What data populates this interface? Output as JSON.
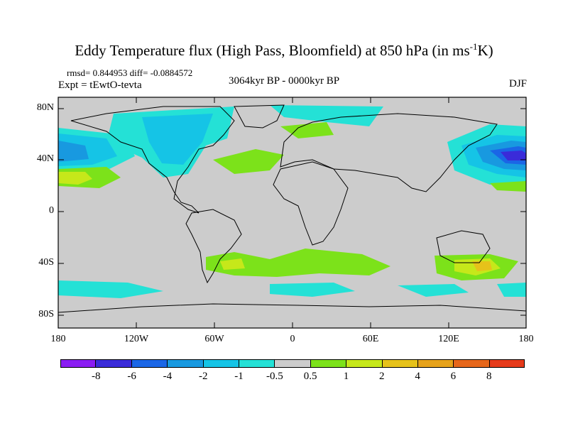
{
  "header": {
    "title_main": "Eddy Temperature flux (High Pass, Bloomfield) at 850 hPa (in ms",
    "title_sup": "-1",
    "title_end": "K)",
    "rmsd_line": "rmsd= 0.844953 diff= -0.0884572",
    "expt_line": "Expt = tEwtO-tevta",
    "period": "3064kyr BP - 0000kyr BP",
    "season": "DJF"
  },
  "axes": {
    "lat_labels": [
      "80N",
      "40N",
      "0",
      "40S",
      "80S"
    ],
    "lon_labels": [
      "180",
      "120W",
      "60W",
      "0",
      "60E",
      "120E",
      "180"
    ]
  },
  "colorbar": {
    "colors": [
      "#8a1cf2",
      "#3a2bd9",
      "#1a66e6",
      "#1899e0",
      "#15c4e6",
      "#24e1d6",
      "#cccccc",
      "#7ce21a",
      "#c6e81a",
      "#e6c21a",
      "#e6a21a",
      "#e6661a",
      "#e63a1a"
    ],
    "labels": [
      "-8",
      "-6",
      "-4",
      "-2",
      "-1",
      "-0.5",
      "0.5",
      "1",
      "2",
      "4",
      "6",
      "8"
    ]
  },
  "map": {
    "background_color": "#cccccc",
    "lon_range": [
      -180,
      180
    ],
    "lat_range": [
      -90,
      90
    ]
  }
}
